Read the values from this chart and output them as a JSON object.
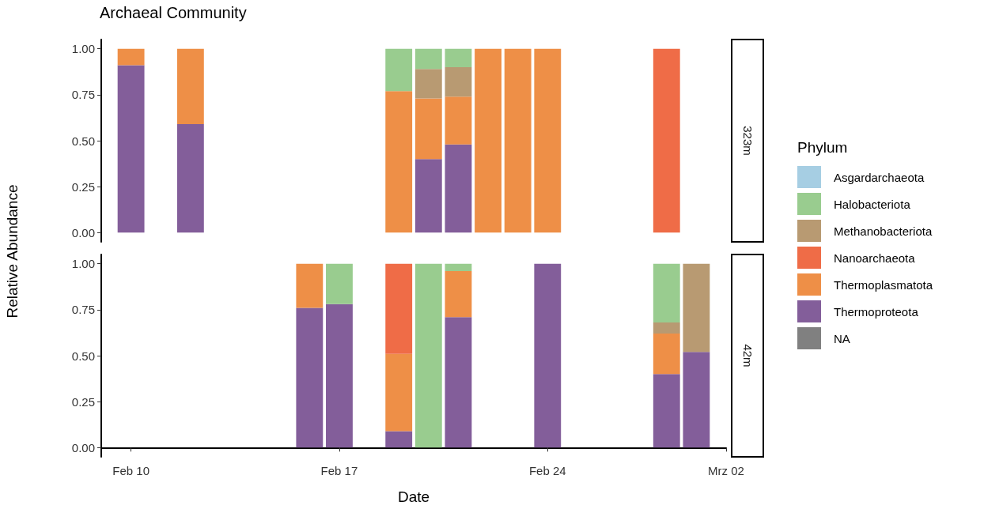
{
  "chart_data": [
    {
      "type": "bar",
      "title": "Archaeal Community",
      "annotations": [
        "323m"
      ],
      "ylabel": "Relative Abundance",
      "legend_title": "Phylum",
      "legend": "right",
      "stacked": true,
      "tick_labels": "y",
      "x": [
        "--02-10",
        "--02-12",
        "--02-19",
        "--02-20",
        "--02-21",
        "--02-22",
        "--02-23",
        "--02-24",
        "--02-28"
      ],
      "xlim": [
        "--02-09",
        "--03-02"
      ],
      "xticks": [
        {
          "value": "--02-10",
          "label": "Feb 10"
        },
        {
          "value": "--02-17",
          "label": "Feb 17"
        },
        {
          "value": "--02-24",
          "label": "Feb 24"
        },
        {
          "value": "--03-02",
          "label": "Mrz 02"
        }
      ],
      "ylim": [
        -0.05,
        1.05
      ],
      "yticks": [
        {
          "value": 0,
          "label": "0.00"
        },
        {
          "value": 0.25,
          "label": "0.25"
        },
        {
          "value": 0.5,
          "label": "0.50"
        },
        {
          "value": 0.75,
          "label": "0.75"
        },
        {
          "value": 1,
          "label": "1.00"
        }
      ],
      "series": [
        {
          "name": "NA",
          "color": "#808080",
          "values": [
            null,
            null,
            null,
            null,
            null,
            null,
            null,
            null,
            null
          ]
        },
        {
          "name": "Thermoproteota",
          "color": "#835e9a",
          "values": [
            0.91,
            0.59,
            null,
            0.4,
            0.48,
            null,
            null,
            null,
            null
          ]
        },
        {
          "name": "Thermoplasmatota",
          "color": "#ee8f47",
          "values": [
            0.09,
            0.41,
            0.77,
            0.33,
            0.26,
            1,
            1,
            1,
            null
          ]
        },
        {
          "name": "Nanoarchaeota",
          "color": "#ef6c47",
          "values": [
            null,
            null,
            null,
            null,
            null,
            null,
            null,
            null,
            1
          ]
        },
        {
          "name": "Methanobacteriota",
          "color": "#b89a72",
          "values": [
            null,
            null,
            null,
            0.16,
            0.16,
            null,
            null,
            null,
            null
          ]
        },
        {
          "name": "Halobacteriota",
          "color": "#99cc8f",
          "values": [
            null,
            null,
            0.23,
            0.11,
            0.1,
            null,
            null,
            null,
            null
          ]
        },
        {
          "name": "Asgardarchaeota",
          "color": "#a6cee3",
          "values": [
            null,
            null,
            null,
            null,
            null,
            null,
            null,
            null,
            null
          ]
        }
      ]
    },
    {
      "type": "bar",
      "annotations": [
        "42m"
      ],
      "xlabel": "Date",
      "stacked": true,
      "x": [
        "--02-16",
        "--02-17",
        "--02-19",
        "--02-20",
        "--02-21",
        "--02-24",
        "--02-28",
        "--03-01"
      ],
      "xlim": [
        "--02-09",
        "--03-02"
      ],
      "xticks": [
        {
          "value": "--02-10",
          "label": "Feb 10"
        },
        {
          "value": "--02-17",
          "label": "Feb 17"
        },
        {
          "value": "--02-24",
          "label": "Feb 24"
        },
        {
          "value": "--03-02",
          "label": "Mrz 02"
        }
      ],
      "ylim": [
        -0.05,
        1.05
      ],
      "yticks": [
        {
          "value": 0,
          "label": "0.00"
        },
        {
          "value": 0.25,
          "label": "0.25"
        },
        {
          "value": 0.5,
          "label": "0.50"
        },
        {
          "value": 0.75,
          "label": "0.75"
        },
        {
          "value": 1,
          "label": "1.00"
        }
      ],
      "series": [
        {
          "name": "Thermoproteota",
          "color": "#835e9a",
          "values": [
            0.76,
            0.78,
            0.09,
            null,
            0.71,
            1,
            0.4,
            0.52
          ]
        },
        {
          "name": "Thermoplasmatota",
          "color": "#ee8f47",
          "values": [
            0.24,
            null,
            0.42,
            null,
            0.25,
            null,
            0.22,
            null
          ]
        },
        {
          "name": "Nanoarchaeota",
          "color": "#ef6c47",
          "values": [
            null,
            null,
            0.49,
            null,
            null,
            null,
            null,
            null
          ]
        },
        {
          "name": "Methanobacteriota",
          "color": "#b89a72",
          "values": [
            null,
            null,
            null,
            null,
            null,
            null,
            0.06,
            0.48
          ]
        },
        {
          "name": "Halobacteriota",
          "color": "#99cc8f",
          "values": [
            null,
            0.22,
            null,
            1,
            0.04,
            null,
            0.32,
            null
          ]
        }
      ]
    }
  ]
}
